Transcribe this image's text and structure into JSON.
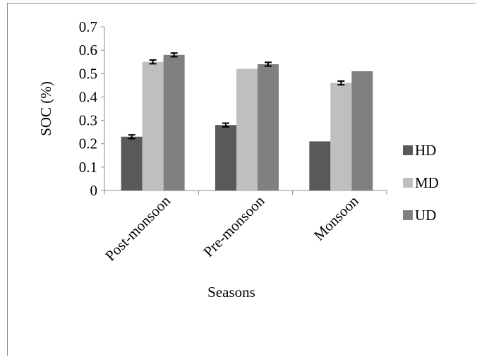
{
  "chart_data": {
    "type": "bar",
    "categories": [
      "Post-monsoon",
      "Pre-monsoon",
      "Monsoon"
    ],
    "series": [
      {
        "name": "HD",
        "values": [
          0.23,
          0.28,
          0.21
        ],
        "errors": [
          0.008,
          0.008,
          null
        ],
        "color": "#595959"
      },
      {
        "name": "MD",
        "values": [
          0.55,
          0.52,
          0.46
        ],
        "errors": [
          0.008,
          null,
          0.008
        ],
        "color": "#bfbfbf"
      },
      {
        "name": "UD",
        "values": [
          0.58,
          0.54,
          0.51
        ],
        "errors": [
          0.008,
          0.008,
          null
        ],
        "color": "#808080"
      }
    ],
    "xlabel": "Seasons",
    "ylabel": "SOC (%)",
    "ylim": [
      0,
      0.7
    ],
    "yticks": [
      "0",
      "0.1",
      "0.2",
      "0.3",
      "0.4",
      "0.5",
      "0.6",
      "0.7"
    ],
    "legend_position": "right",
    "grid": false
  }
}
